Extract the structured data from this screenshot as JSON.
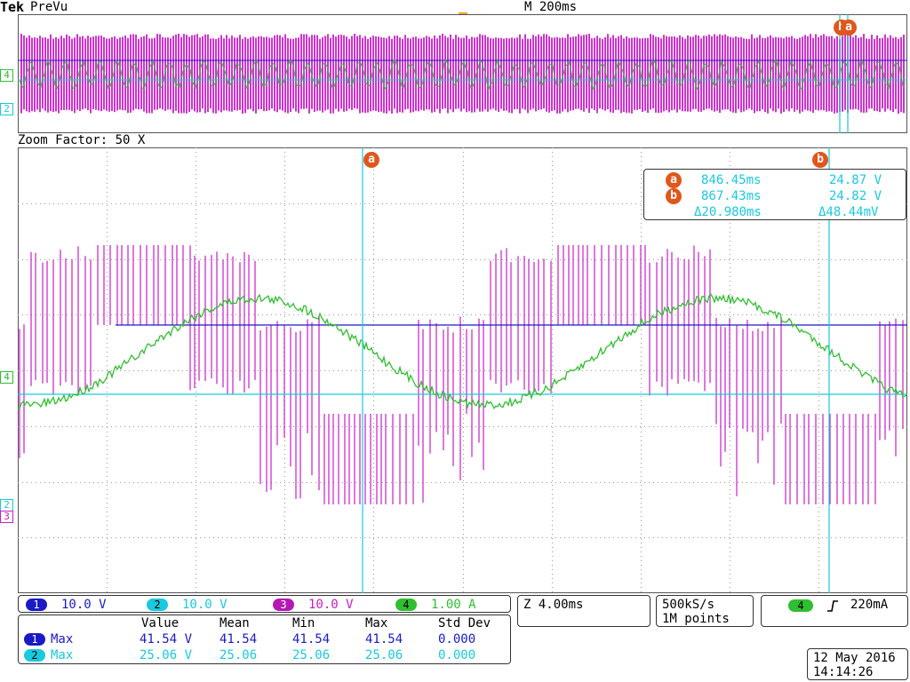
{
  "header": {
    "brand": "Tek",
    "mode": "PreVu",
    "timebase": "M 200ms"
  },
  "overview": {
    "marker_a": "a",
    "marker_b": "b"
  },
  "zoom": {
    "label": "Zoom Factor: 50 X"
  },
  "cursors": {
    "a_label": "a",
    "b_label": "b",
    "readout": {
      "a": {
        "time": "846.45ms",
        "value": "24.87 V"
      },
      "b": {
        "time": "867.43ms",
        "value": "24.82 V"
      },
      "delta_time": "Δ20.980ms",
      "delta_value": "Δ48.44mV"
    }
  },
  "channels": [
    {
      "num": "1",
      "scale": "10.0 V",
      "color": "#1a1ac8"
    },
    {
      "num": "2",
      "scale": "10.0 V",
      "color": "#19c9dd"
    },
    {
      "num": "3",
      "scale": "10.0 V",
      "color": "#c81ec8"
    },
    {
      "num": "4",
      "scale": "1.00 A",
      "color": "#2fbf2f"
    }
  ],
  "ref_markers": {
    "ch4": "4",
    "ch2": "2",
    "ch3": "3"
  },
  "horizontal": {
    "zoom_scale": "Z 4.00ms"
  },
  "acquisition": {
    "rate": "500kS/s",
    "points": "1M points"
  },
  "trigger": {
    "source": "4",
    "slope_icon": "rising-edge",
    "level": "220mA"
  },
  "measurements": {
    "headers": [
      "",
      "Value",
      "Mean",
      "Min",
      "Max",
      "Std Dev"
    ],
    "rows": [
      {
        "ch": "1",
        "type": "Max",
        "value": "41.54 V",
        "mean": "41.54",
        "min": "41.54",
        "max": "41.54",
        "std": "0.000"
      },
      {
        "ch": "2",
        "type": "Max",
        "value": "25.06 V",
        "mean": "25.06",
        "min": "25.06",
        "max": "25.06",
        "std": "0.000"
      }
    ]
  },
  "datetime": {
    "date": "12 May 2016",
    "time": "14:14:26"
  }
}
